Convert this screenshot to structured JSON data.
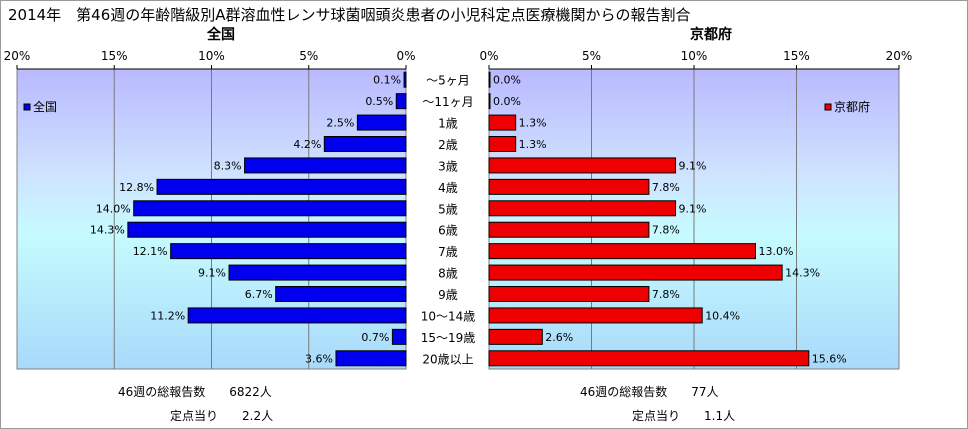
{
  "title": "2014年　第46週の年齢階級別A群溶血性レンサ球菌咽頭炎患者の小児科定点医療機関からの報告割合",
  "chart_data": [
    {
      "type": "bar",
      "orientation": "horizontal",
      "title": "全国",
      "legend": "全国",
      "legend_placement": "top-left",
      "color": "#0000ee",
      "axis_reversed": true,
      "xlim": [
        0,
        20
      ],
      "xticks": [
        "20%",
        "15%",
        "10%",
        "5%",
        "0%"
      ],
      "grid": true,
      "categories": [
        "～5ヶ月",
        "～11ヶ月",
        "1歳",
        "2歳",
        "3歳",
        "4歳",
        "5歳",
        "6歳",
        "7歳",
        "8歳",
        "9歳",
        "10～14歳",
        "15～19歳",
        "20歳以上"
      ],
      "values": [
        0.1,
        0.5,
        2.5,
        4.2,
        8.3,
        12.8,
        14.0,
        14.3,
        12.1,
        9.1,
        6.7,
        11.2,
        0.7,
        3.6
      ],
      "labels": [
        "0.1%",
        "0.5%",
        "2.5%",
        "4.2%",
        "8.3%",
        "12.8%",
        "14.0%",
        "14.3%",
        "12.1%",
        "9.1%",
        "6.7%",
        "11.2%",
        "0.7%",
        "3.6%"
      ]
    },
    {
      "type": "bar",
      "orientation": "horizontal",
      "title": "京都府",
      "legend": "京都府",
      "legend_placement": "top-right",
      "color": "#ee0000",
      "xlim": [
        0,
        20
      ],
      "xticks": [
        "0%",
        "5%",
        "10%",
        "15%",
        "20%"
      ],
      "grid": true,
      "categories": [
        "～5ヶ月",
        "～11ヶ月",
        "1歳",
        "2歳",
        "3歳",
        "4歳",
        "5歳",
        "6歳",
        "7歳",
        "8歳",
        "9歳",
        "10～14歳",
        "15～19歳",
        "20歳以上"
      ],
      "values": [
        0.0,
        0.0,
        1.3,
        1.3,
        9.1,
        7.8,
        9.1,
        7.8,
        13.0,
        14.3,
        7.8,
        10.4,
        2.6,
        15.6
      ],
      "labels": [
        "0.0%",
        "0.0%",
        "1.3%",
        "1.3%",
        "9.1%",
        "7.8%",
        "9.1%",
        "7.8%",
        "13.0%",
        "14.3%",
        "7.8%",
        "10.4%",
        "2.6%",
        "15.6%"
      ]
    }
  ],
  "footer": {
    "national": {
      "total": "46週の総報告数　　6822人",
      "per_site": "定点当り　　2.2人"
    },
    "kyoto": {
      "total": "46週の総報告数　　77人",
      "per_site": "定点当り　　1.1人"
    }
  }
}
